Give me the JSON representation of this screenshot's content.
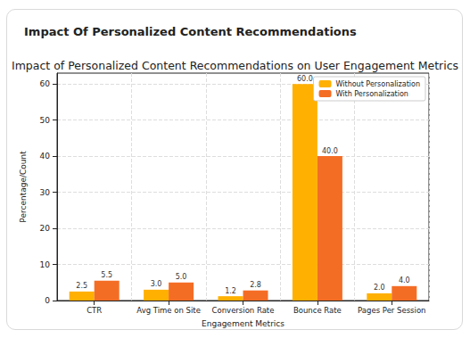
{
  "header": {
    "title": "Impact Of Personalized Content Recommendations"
  },
  "chart_data": {
    "type": "bar",
    "title": "Impact of Personalized Content Recommendations on User Engagement Metrics",
    "x_label": "Engagement Metrics",
    "y_label": "Percentage/Count",
    "categories": [
      "CTR",
      "Avg Time on Site",
      "Conversion Rate",
      "Bounce Rate",
      "Pages Per Session"
    ],
    "series": [
      {
        "name": "Without Personalization",
        "color": "#ffb000",
        "values": [
          2.5,
          3.0,
          1.2,
          60.0,
          2.0
        ],
        "value_labels": [
          "2.5",
          "3.0",
          "1.2",
          "60.0",
          "2.0"
        ]
      },
      {
        "name": "With Personalization",
        "color": "#f46d25",
        "values": [
          5.5,
          5.0,
          2.8,
          40.0,
          4.0
        ],
        "value_labels": [
          "5.5",
          "5.0",
          "2.8",
          "40.0",
          "4.0"
        ]
      }
    ],
    "ylim": [
      0,
      63
    ],
    "yticks": [
      0,
      10,
      20,
      30,
      40,
      50,
      60
    ],
    "grid": true,
    "legend": "upper right",
    "data_labels": true
  }
}
